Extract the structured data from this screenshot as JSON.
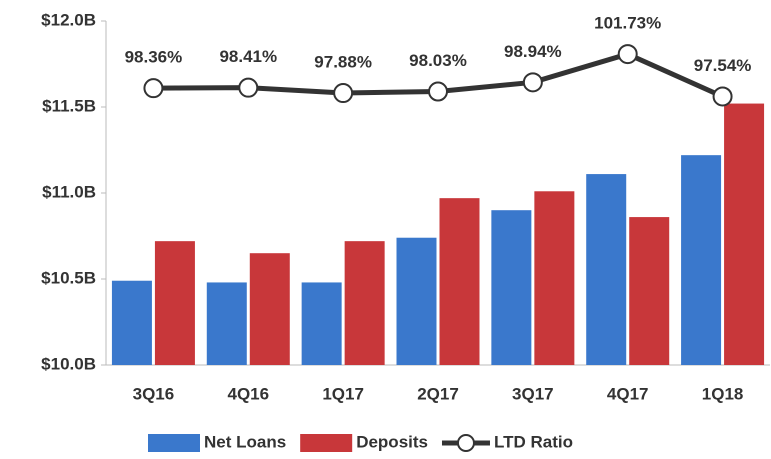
{
  "chart_data": {
    "type": "bar",
    "categories": [
      "3Q16",
      "4Q16",
      "1Q17",
      "2Q17",
      "3Q17",
      "4Q17",
      "1Q18"
    ],
    "series": [
      {
        "name": "Net Loans",
        "color": "#3a78cc",
        "values": [
          10.49,
          10.48,
          10.48,
          10.74,
          10.9,
          11.11,
          11.22
        ]
      },
      {
        "name": "Deposits",
        "color": "#c8373a",
        "values": [
          10.72,
          10.65,
          10.72,
          10.97,
          11.01,
          10.86,
          11.52
        ]
      },
      {
        "name": "LTD Ratio",
        "type": "line",
        "axis": "y2",
        "color": "#333333",
        "values": [
          98.36,
          98.41,
          97.88,
          98.03,
          98.94,
          101.73,
          97.54
        ],
        "value_labels": [
          "98.36%",
          "98.41%",
          "97.88%",
          "98.03%",
          "98.94%",
          "101.73%",
          "97.54%"
        ]
      }
    ],
    "ylim": [
      10,
      12
    ],
    "yticks": [
      {
        "value": 10,
        "label": "$10.0B"
      },
      {
        "value": 10.5,
        "label": "$10.5B"
      },
      {
        "value": 11,
        "label": "$11.0B"
      },
      {
        "value": 11.5,
        "label": "$11.5B"
      },
      {
        "value": 12,
        "label": "$12.0B"
      }
    ],
    "y2lim": [
      71,
      105
    ],
    "grid": false,
    "legend": "bottom"
  }
}
